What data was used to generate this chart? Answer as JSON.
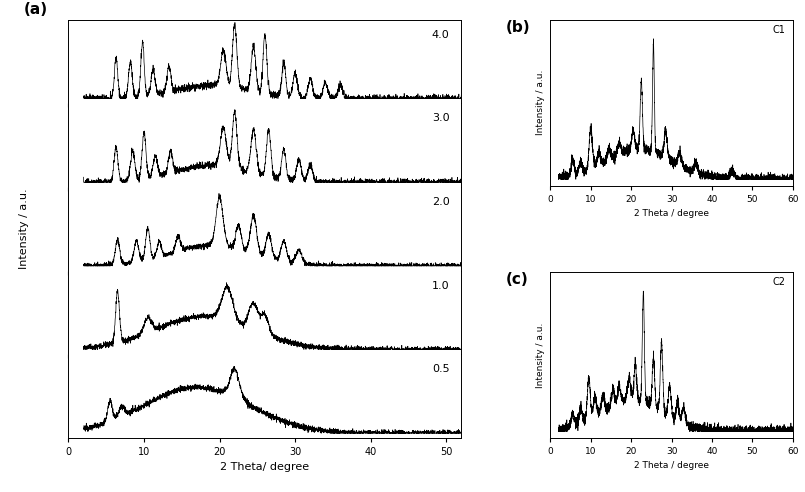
{
  "panel_a": {
    "xlabel": "2 Theta/ degree",
    "ylabel": "Intensity / a.u.",
    "label_a": "(a)",
    "xlim": [
      0,
      52
    ],
    "xticks": [
      0,
      10,
      20,
      30,
      40,
      50
    ],
    "series_labels": [
      "4.0",
      "3.0",
      "2.0",
      "1.0",
      "0.5"
    ]
  },
  "panel_b": {
    "xlabel": "2 Theta / degree",
    "ylabel": "Intensity / a.u.",
    "label_b": "(b)",
    "corner_label": "C1",
    "xlim": [
      0,
      60
    ],
    "xticks": [
      0,
      10,
      20,
      30,
      40,
      50,
      60
    ]
  },
  "panel_c": {
    "xlabel": "2 Theta / degree",
    "ylabel": "Intensity / a.u.",
    "label_c": "(c)",
    "corner_label": "C2",
    "xlim": [
      0,
      60
    ],
    "xticks": [
      0,
      10,
      20,
      30,
      40,
      50,
      60
    ]
  },
  "line_color": "#000000",
  "line_width": 0.5,
  "background_color": "#ffffff",
  "tick_fontsize": 7,
  "label_fontsize": 8,
  "panel_label_fontsize": 11
}
